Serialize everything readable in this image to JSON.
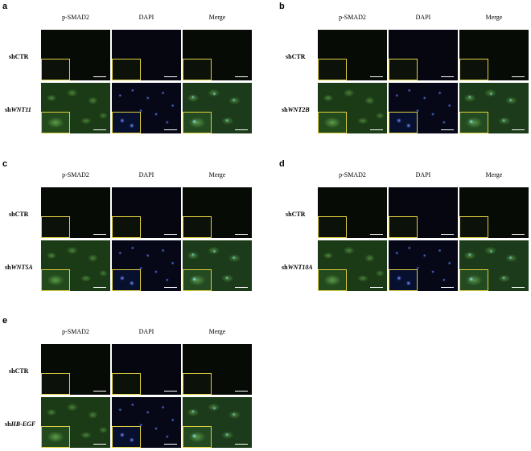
{
  "columns": [
    "p-SMAD2",
    "DAPI",
    "Merge"
  ],
  "panels": [
    {
      "letter": "a",
      "control": "shCTR",
      "kd_prefix": "sh",
      "kd_gene": "WNT11"
    },
    {
      "letter": "b",
      "control": "shCTR",
      "kd_prefix": "sh",
      "kd_gene": "WNT2B"
    },
    {
      "letter": "c",
      "control": "shCTR",
      "kd_prefix": "sh",
      "kd_gene": "WNT5A"
    },
    {
      "letter": "d",
      "control": "shCTR",
      "kd_prefix": "sh",
      "kd_gene": "WNT10A"
    },
    {
      "letter": "e",
      "control": "shCTR",
      "kd_prefix": "sh",
      "kd_gene": "HB-EGF"
    }
  ],
  "colors": {
    "inset_border": "#e0d040",
    "scalebar": "#ffffff",
    "green_signal": "#78c85a",
    "dapi_signal": "#5b7cff"
  }
}
